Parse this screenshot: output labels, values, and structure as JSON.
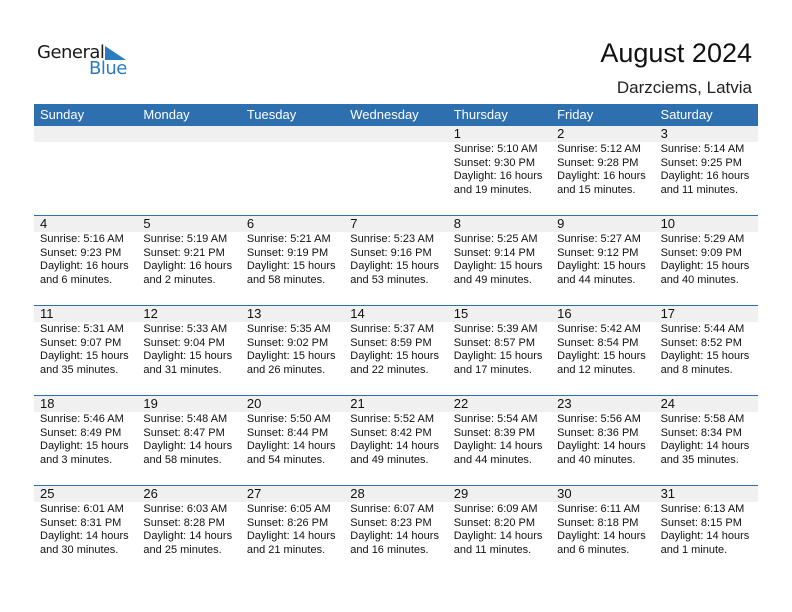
{
  "logo": {
    "line1": "General",
    "line2": "Blue",
    "accent": "#2a7bc0"
  },
  "header": {
    "title": "August 2024",
    "location": "Darzciems, Latvia"
  },
  "colors": {
    "header_bg": "#2e6fb0",
    "day_band": "#f0f0f0"
  },
  "weekdays": [
    "Sunday",
    "Monday",
    "Tuesday",
    "Wednesday",
    "Thursday",
    "Friday",
    "Saturday"
  ],
  "weeks": [
    [
      null,
      null,
      null,
      null,
      {
        "day": "1",
        "sunrise": "Sunrise: 5:10 AM",
        "sunset": "Sunset: 9:30 PM",
        "daylight1": "Daylight: 16 hours",
        "daylight2": "and 19 minutes."
      },
      {
        "day": "2",
        "sunrise": "Sunrise: 5:12 AM",
        "sunset": "Sunset: 9:28 PM",
        "daylight1": "Daylight: 16 hours",
        "daylight2": "and 15 minutes."
      },
      {
        "day": "3",
        "sunrise": "Sunrise: 5:14 AM",
        "sunset": "Sunset: 9:25 PM",
        "daylight1": "Daylight: 16 hours",
        "daylight2": "and 11 minutes."
      }
    ],
    [
      {
        "day": "4",
        "sunrise": "Sunrise: 5:16 AM",
        "sunset": "Sunset: 9:23 PM",
        "daylight1": "Daylight: 16 hours",
        "daylight2": "and 6 minutes."
      },
      {
        "day": "5",
        "sunrise": "Sunrise: 5:19 AM",
        "sunset": "Sunset: 9:21 PM",
        "daylight1": "Daylight: 16 hours",
        "daylight2": "and 2 minutes."
      },
      {
        "day": "6",
        "sunrise": "Sunrise: 5:21 AM",
        "sunset": "Sunset: 9:19 PM",
        "daylight1": "Daylight: 15 hours",
        "daylight2": "and 58 minutes."
      },
      {
        "day": "7",
        "sunrise": "Sunrise: 5:23 AM",
        "sunset": "Sunset: 9:16 PM",
        "daylight1": "Daylight: 15 hours",
        "daylight2": "and 53 minutes."
      },
      {
        "day": "8",
        "sunrise": "Sunrise: 5:25 AM",
        "sunset": "Sunset: 9:14 PM",
        "daylight1": "Daylight: 15 hours",
        "daylight2": "and 49 minutes."
      },
      {
        "day": "9",
        "sunrise": "Sunrise: 5:27 AM",
        "sunset": "Sunset: 9:12 PM",
        "daylight1": "Daylight: 15 hours",
        "daylight2": "and 44 minutes."
      },
      {
        "day": "10",
        "sunrise": "Sunrise: 5:29 AM",
        "sunset": "Sunset: 9:09 PM",
        "daylight1": "Daylight: 15 hours",
        "daylight2": "and 40 minutes."
      }
    ],
    [
      {
        "day": "11",
        "sunrise": "Sunrise: 5:31 AM",
        "sunset": "Sunset: 9:07 PM",
        "daylight1": "Daylight: 15 hours",
        "daylight2": "and 35 minutes."
      },
      {
        "day": "12",
        "sunrise": "Sunrise: 5:33 AM",
        "sunset": "Sunset: 9:04 PM",
        "daylight1": "Daylight: 15 hours",
        "daylight2": "and 31 minutes."
      },
      {
        "day": "13",
        "sunrise": "Sunrise: 5:35 AM",
        "sunset": "Sunset: 9:02 PM",
        "daylight1": "Daylight: 15 hours",
        "daylight2": "and 26 minutes."
      },
      {
        "day": "14",
        "sunrise": "Sunrise: 5:37 AM",
        "sunset": "Sunset: 8:59 PM",
        "daylight1": "Daylight: 15 hours",
        "daylight2": "and 22 minutes."
      },
      {
        "day": "15",
        "sunrise": "Sunrise: 5:39 AM",
        "sunset": "Sunset: 8:57 PM",
        "daylight1": "Daylight: 15 hours",
        "daylight2": "and 17 minutes."
      },
      {
        "day": "16",
        "sunrise": "Sunrise: 5:42 AM",
        "sunset": "Sunset: 8:54 PM",
        "daylight1": "Daylight: 15 hours",
        "daylight2": "and 12 minutes."
      },
      {
        "day": "17",
        "sunrise": "Sunrise: 5:44 AM",
        "sunset": "Sunset: 8:52 PM",
        "daylight1": "Daylight: 15 hours",
        "daylight2": "and 8 minutes."
      }
    ],
    [
      {
        "day": "18",
        "sunrise": "Sunrise: 5:46 AM",
        "sunset": "Sunset: 8:49 PM",
        "daylight1": "Daylight: 15 hours",
        "daylight2": "and 3 minutes."
      },
      {
        "day": "19",
        "sunrise": "Sunrise: 5:48 AM",
        "sunset": "Sunset: 8:47 PM",
        "daylight1": "Daylight: 14 hours",
        "daylight2": "and 58 minutes."
      },
      {
        "day": "20",
        "sunrise": "Sunrise: 5:50 AM",
        "sunset": "Sunset: 8:44 PM",
        "daylight1": "Daylight: 14 hours",
        "daylight2": "and 54 minutes."
      },
      {
        "day": "21",
        "sunrise": "Sunrise: 5:52 AM",
        "sunset": "Sunset: 8:42 PM",
        "daylight1": "Daylight: 14 hours",
        "daylight2": "and 49 minutes."
      },
      {
        "day": "22",
        "sunrise": "Sunrise: 5:54 AM",
        "sunset": "Sunset: 8:39 PM",
        "daylight1": "Daylight: 14 hours",
        "daylight2": "and 44 minutes."
      },
      {
        "day": "23",
        "sunrise": "Sunrise: 5:56 AM",
        "sunset": "Sunset: 8:36 PM",
        "daylight1": "Daylight: 14 hours",
        "daylight2": "and 40 minutes."
      },
      {
        "day": "24",
        "sunrise": "Sunrise: 5:58 AM",
        "sunset": "Sunset: 8:34 PM",
        "daylight1": "Daylight: 14 hours",
        "daylight2": "and 35 minutes."
      }
    ],
    [
      {
        "day": "25",
        "sunrise": "Sunrise: 6:01 AM",
        "sunset": "Sunset: 8:31 PM",
        "daylight1": "Daylight: 14 hours",
        "daylight2": "and 30 minutes."
      },
      {
        "day": "26",
        "sunrise": "Sunrise: 6:03 AM",
        "sunset": "Sunset: 8:28 PM",
        "daylight1": "Daylight: 14 hours",
        "daylight2": "and 25 minutes."
      },
      {
        "day": "27",
        "sunrise": "Sunrise: 6:05 AM",
        "sunset": "Sunset: 8:26 PM",
        "daylight1": "Daylight: 14 hours",
        "daylight2": "and 21 minutes."
      },
      {
        "day": "28",
        "sunrise": "Sunrise: 6:07 AM",
        "sunset": "Sunset: 8:23 PM",
        "daylight1": "Daylight: 14 hours",
        "daylight2": "and 16 minutes."
      },
      {
        "day": "29",
        "sunrise": "Sunrise: 6:09 AM",
        "sunset": "Sunset: 8:20 PM",
        "daylight1": "Daylight: 14 hours",
        "daylight2": "and 11 minutes."
      },
      {
        "day": "30",
        "sunrise": "Sunrise: 6:11 AM",
        "sunset": "Sunset: 8:18 PM",
        "daylight1": "Daylight: 14 hours",
        "daylight2": "and 6 minutes."
      },
      {
        "day": "31",
        "sunrise": "Sunrise: 6:13 AM",
        "sunset": "Sunset: 8:15 PM",
        "daylight1": "Daylight: 14 hours",
        "daylight2": "and 1 minute."
      }
    ]
  ]
}
